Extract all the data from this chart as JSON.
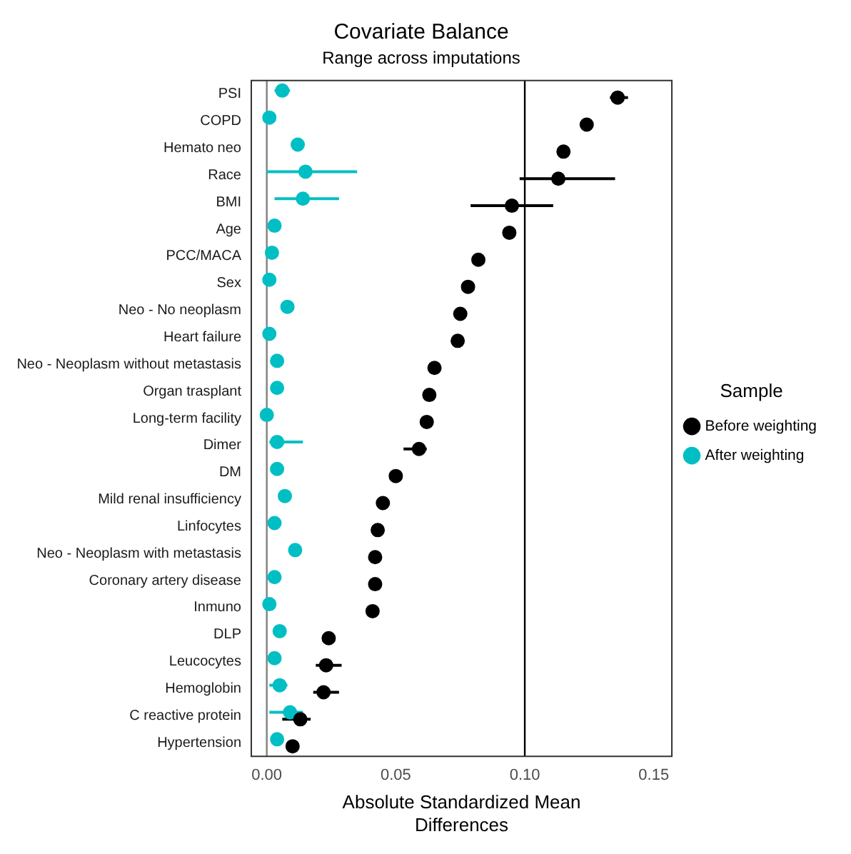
{
  "chart_data": {
    "type": "scatter",
    "title": "Covariate Balance",
    "subtitle": "Range across imputations",
    "xlabel": "Absolute Standardized Mean Differences",
    "orientation": "horizontal",
    "categories": [
      "PSI",
      "COPD",
      "Hemato neo",
      "Race",
      "BMI",
      "Age",
      "PCC/MACA",
      "Sex",
      "Neo - No neoplasm",
      "Heart failure",
      "Neo - Neoplasm without metastasis",
      "Organ trasplant",
      "Long-term facility",
      "Dimer",
      "DM",
      "Mild renal insufficiency",
      "Linfocytes",
      "Neo - Neoplasm with metastasis",
      "Coronary artery disease",
      "Inmuno",
      "DLP",
      "Leucocytes",
      "Hemoglobin",
      "C reactive protein",
      "Hypertension"
    ],
    "series": [
      {
        "name": "Before weighting",
        "color": "#000000",
        "values": [
          0.136,
          0.124,
          0.115,
          0.113,
          0.095,
          0.094,
          0.082,
          0.078,
          0.075,
          0.074,
          0.065,
          0.063,
          0.062,
          0.059,
          0.05,
          0.045,
          0.043,
          0.042,
          0.042,
          0.041,
          0.024,
          0.023,
          0.022,
          0.013,
          0.01
        ],
        "errors": [
          [
            0.133,
            0.14
          ],
          null,
          null,
          [
            0.098,
            0.135
          ],
          [
            0.079,
            0.111
          ],
          null,
          null,
          null,
          null,
          null,
          null,
          null,
          null,
          [
            0.053,
            0.062
          ],
          null,
          null,
          null,
          null,
          null,
          null,
          null,
          [
            0.019,
            0.029
          ],
          [
            0.018,
            0.028
          ],
          [
            0.006,
            0.017
          ],
          null
        ]
      },
      {
        "name": "After weighting",
        "color": "#00bfc4",
        "values": [
          0.006,
          0.001,
          0.012,
          0.015,
          0.014,
          0.003,
          0.002,
          0.001,
          0.008,
          0.001,
          0.004,
          0.004,
          0.0,
          0.004,
          0.004,
          0.007,
          0.003,
          0.011,
          0.003,
          0.001,
          0.005,
          0.003,
          0.005,
          0.009,
          0.004
        ],
        "errors": [
          [
            0.003,
            0.009
          ],
          null,
          null,
          [
            0.0,
            0.035
          ],
          [
            0.003,
            0.028
          ],
          null,
          null,
          null,
          null,
          null,
          null,
          null,
          null,
          [
            0.001,
            0.014
          ],
          null,
          null,
          null,
          null,
          null,
          null,
          null,
          null,
          [
            0.001,
            0.008
          ],
          [
            0.001,
            0.014
          ],
          null
        ]
      }
    ],
    "xlim": [
      -0.006,
      0.157
    ],
    "xticks": [
      {
        "value": 0,
        "label": "0.00"
      },
      {
        "value": 0.05,
        "label": "0.05"
      },
      {
        "value": 0.1,
        "label": "0.10"
      },
      {
        "value": 0.15,
        "label": "0.15"
      }
    ],
    "ref_lines": [
      {
        "axis": "x",
        "value": 0,
        "color": "#808080"
      },
      {
        "axis": "x",
        "value": 0.1,
        "color": "#000000"
      }
    ],
    "legend_title": "Sample",
    "legend": "right",
    "grid": false,
    "marker": "circle"
  }
}
